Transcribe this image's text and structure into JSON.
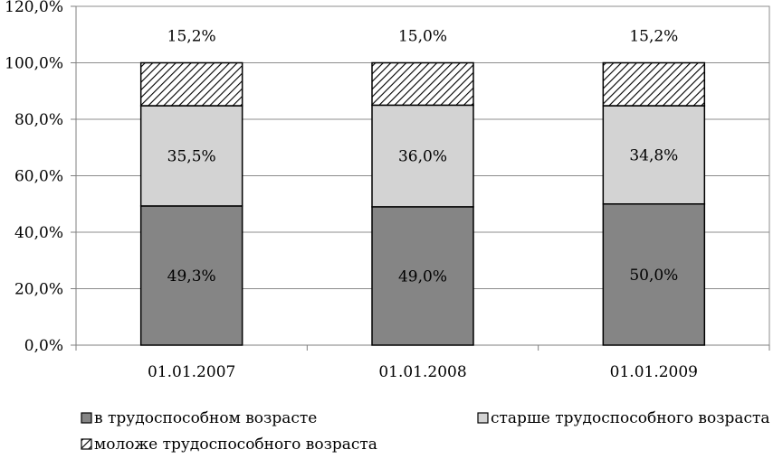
{
  "chart_data": {
    "type": "bar",
    "stacked": true,
    "categories": [
      "01.01.2007",
      "01.01.2008",
      "01.01.2009"
    ],
    "series": [
      {
        "name": "в трудоспособном возрасте",
        "values": [
          49.3,
          49.0,
          50.0
        ],
        "labels": [
          "49,3%",
          "49,0%",
          "50,0%"
        ],
        "fill": "#858585",
        "pattern": "solid"
      },
      {
        "name": "старше трудоспособного возраста",
        "values": [
          35.5,
          36.0,
          34.8
        ],
        "labels": [
          "35,5%",
          "36,0%",
          "34,8%"
        ],
        "fill": "#d3d3d3",
        "pattern": "solid"
      },
      {
        "name": "моложе трудоспособного возраста",
        "values": [
          15.2,
          15.0,
          15.2
        ],
        "labels": [
          "15,2%",
          "15,0%",
          "15,2%"
        ],
        "fill": "#ffffff",
        "pattern": "diagonal-hatch"
      }
    ],
    "ylim": [
      0,
      120
    ],
    "yticks": [
      0,
      20,
      40,
      60,
      80,
      100,
      120
    ],
    "ytick_labels": [
      "0,0%",
      "20,0%",
      "40,0%",
      "60,0%",
      "80,0%",
      "100,0%",
      "120,0%"
    ],
    "title": "",
    "xlabel": "",
    "ylabel": "",
    "grid": true,
    "legend_position": "bottom"
  }
}
